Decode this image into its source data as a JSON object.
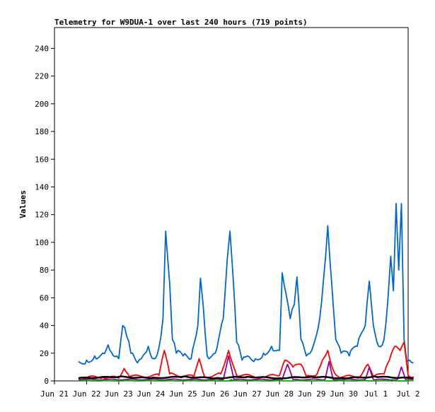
{
  "chart_data": {
    "type": "line",
    "title": "Telemetry for W9DUA-1 over last 240 hours (719 points)",
    "xlabel": "",
    "ylabel": "Values",
    "ylim": [
      0,
      255
    ],
    "yticks": [
      0,
      20,
      40,
      60,
      80,
      100,
      120,
      140,
      160,
      180,
      200,
      220,
      240
    ],
    "xlim": [
      "2023-06-21T00:00",
      "2023-07-02T00:00"
    ],
    "xticks": [
      {
        "t": "2023-06-21T00:00",
        "label": "Jun 21"
      },
      {
        "t": "2023-06-22T00:00",
        "label": "Jun 22"
      },
      {
        "t": "2023-06-23T00:00",
        "label": "Jun 23"
      },
      {
        "t": "2023-06-24T00:00",
        "label": "Jun 24"
      },
      {
        "t": "2023-06-25T00:00",
        "label": "Jun 25"
      },
      {
        "t": "2023-06-26T00:00",
        "label": "Jun 26"
      },
      {
        "t": "2023-06-27T00:00",
        "label": "Jun 27"
      },
      {
        "t": "2023-06-28T00:00",
        "label": "Jun 28"
      },
      {
        "t": "2023-06-29T00:00",
        "label": "Jun 29"
      },
      {
        "t": "2023-06-30T00:00",
        "label": "Jun 30"
      },
      {
        "t": "2023-07-01T00:00",
        "label": "Jul 1"
      },
      {
        "t": "2023-07-02T00:00",
        "label": "Jul 2"
      }
    ],
    "grid": false,
    "legend": "none",
    "series": [
      {
        "color": "#0066cc",
        "points": [
          [
            "2023-06-21T18:00",
            14
          ],
          [
            "2023-06-22T00:00",
            15
          ],
          [
            "2023-06-22T06:00",
            18
          ],
          [
            "2023-06-22T12:00",
            20
          ],
          [
            "2023-06-22T16:00",
            26
          ],
          [
            "2023-06-22T20:00",
            18
          ],
          [
            "2023-06-23T00:00",
            16
          ],
          [
            "2023-06-23T03:00",
            40
          ],
          [
            "2023-06-23T06:00",
            32
          ],
          [
            "2023-06-23T09:00",
            20
          ],
          [
            "2023-06-23T14:00",
            13
          ],
          [
            "2023-06-23T18:00",
            18
          ],
          [
            "2023-06-23T22:00",
            25
          ],
          [
            "2023-06-24T02:00",
            16
          ],
          [
            "2023-06-24T06:00",
            24
          ],
          [
            "2023-06-24T09:00",
            45
          ],
          [
            "2023-06-24T11:00",
            108
          ],
          [
            "2023-06-24T14:00",
            70
          ],
          [
            "2023-06-24T16:00",
            30
          ],
          [
            "2023-06-24T19:00",
            20
          ],
          [
            "2023-06-25T00:00",
            18
          ],
          [
            "2023-06-25T06:00",
            16
          ],
          [
            "2023-06-25T11:00",
            40
          ],
          [
            "2023-06-25T13:00",
            74
          ],
          [
            "2023-06-25T15:00",
            55
          ],
          [
            "2023-06-25T18:00",
            18
          ],
          [
            "2023-06-26T00:00",
            20
          ],
          [
            "2023-06-26T06:00",
            45
          ],
          [
            "2023-06-26T09:00",
            88
          ],
          [
            "2023-06-26T11:00",
            108
          ],
          [
            "2023-06-26T13:00",
            80
          ],
          [
            "2023-06-26T16:00",
            28
          ],
          [
            "2023-06-26T20:00",
            15
          ],
          [
            "2023-06-27T00:00",
            18
          ],
          [
            "2023-06-27T06:00",
            16
          ],
          [
            "2023-06-27T12:00",
            20
          ],
          [
            "2023-06-27T18:00",
            25
          ],
          [
            "2023-06-28T00:00",
            22
          ],
          [
            "2023-06-28T02:00",
            78
          ],
          [
            "2023-06-28T05:00",
            62
          ],
          [
            "2023-06-28T08:00",
            45
          ],
          [
            "2023-06-28T11:00",
            55
          ],
          [
            "2023-06-28T13:00",
            75
          ],
          [
            "2023-06-28T16:00",
            30
          ],
          [
            "2023-06-28T20:00",
            18
          ],
          [
            "2023-06-29T00:00",
            22
          ],
          [
            "2023-06-29T06:00",
            45
          ],
          [
            "2023-06-29T09:00",
            75
          ],
          [
            "2023-06-29T12:00",
            112
          ],
          [
            "2023-06-29T15:00",
            70
          ],
          [
            "2023-06-29T18:00",
            30
          ],
          [
            "2023-06-29T22:00",
            20
          ],
          [
            "2023-06-30T04:00",
            18
          ],
          [
            "2023-06-30T10:00",
            25
          ],
          [
            "2023-06-30T16:00",
            40
          ],
          [
            "2023-06-30T19:00",
            72
          ],
          [
            "2023-06-30T22:00",
            40
          ],
          [
            "2023-07-01T02:00",
            25
          ],
          [
            "2023-07-01T06:00",
            30
          ],
          [
            "2023-07-01T09:00",
            60
          ],
          [
            "2023-07-01T11:00",
            90
          ],
          [
            "2023-07-01T13:00",
            65
          ],
          [
            "2023-07-01T15:00",
            128
          ],
          [
            "2023-07-01T17:00",
            80
          ],
          [
            "2023-07-01T19:00",
            128
          ],
          [
            "2023-07-01T21:00",
            30
          ],
          [
            "2023-07-01T23:00",
            14
          ],
          [
            "2023-07-02T01:00",
            15
          ],
          [
            "2023-07-02T04:00",
            13
          ]
        ]
      },
      {
        "color": "#ff0000",
        "points": [
          [
            "2023-06-21T18:00",
            2
          ],
          [
            "2023-06-22T12:00",
            3
          ],
          [
            "2023-06-23T00:00",
            2
          ],
          [
            "2023-06-23T04:00",
            9
          ],
          [
            "2023-06-23T08:00",
            3
          ],
          [
            "2023-06-24T06:00",
            4
          ],
          [
            "2023-06-24T10:00",
            22
          ],
          [
            "2023-06-24T14:00",
            5
          ],
          [
            "2023-06-25T08:00",
            3
          ],
          [
            "2023-06-25T12:00",
            16
          ],
          [
            "2023-06-25T16:00",
            3
          ],
          [
            "2023-06-26T04:00",
            5
          ],
          [
            "2023-06-26T10:00",
            22
          ],
          [
            "2023-06-26T16:00",
            4
          ],
          [
            "2023-06-27T12:00",
            3
          ],
          [
            "2023-06-28T00:00",
            4
          ],
          [
            "2023-06-28T04:00",
            15
          ],
          [
            "2023-06-28T10:00",
            10
          ],
          [
            "2023-06-28T16:00",
            12
          ],
          [
            "2023-06-28T20:00",
            3
          ],
          [
            "2023-06-29T04:00",
            5
          ],
          [
            "2023-06-29T08:00",
            15
          ],
          [
            "2023-06-29T12:00",
            22
          ],
          [
            "2023-06-29T16:00",
            8
          ],
          [
            "2023-06-29T20:00",
            3
          ],
          [
            "2023-06-30T12:00",
            3
          ],
          [
            "2023-06-30T18:00",
            12
          ],
          [
            "2023-06-30T22:00",
            3
          ],
          [
            "2023-07-01T06:00",
            5
          ],
          [
            "2023-07-01T10:00",
            15
          ],
          [
            "2023-07-01T14:00",
            25
          ],
          [
            "2023-07-01T18:00",
            22
          ],
          [
            "2023-07-01T21:00",
            28
          ],
          [
            "2023-07-02T00:00",
            4
          ],
          [
            "2023-07-02T04:00",
            3
          ]
        ]
      },
      {
        "color": "#990099",
        "points": [
          [
            "2023-06-21T18:00",
            1
          ],
          [
            "2023-06-26T06:00",
            1
          ],
          [
            "2023-06-26T10:00",
            18
          ],
          [
            "2023-06-26T14:00",
            1
          ],
          [
            "2023-06-28T02:00",
            1
          ],
          [
            "2023-06-28T06:00",
            12
          ],
          [
            "2023-06-28T10:00",
            1
          ],
          [
            "2023-06-29T10:00",
            1
          ],
          [
            "2023-06-29T13:00",
            14
          ],
          [
            "2023-06-29T16:00",
            1
          ],
          [
            "2023-06-30T16:00",
            1
          ],
          [
            "2023-06-30T19:00",
            10
          ],
          [
            "2023-06-30T22:00",
            1
          ],
          [
            "2023-07-01T16:00",
            1
          ],
          [
            "2023-07-01T19:00",
            10
          ],
          [
            "2023-07-01T22:00",
            1
          ],
          [
            "2023-07-02T04:00",
            1
          ]
        ]
      },
      {
        "color": "#00aa00",
        "points": [
          [
            "2023-06-21T18:00",
            0
          ],
          [
            "2023-06-26T10:00",
            0
          ],
          [
            "2023-06-26T12:00",
            1
          ],
          [
            "2023-06-26T14:00",
            0
          ],
          [
            "2023-07-01T10:00",
            0
          ],
          [
            "2023-07-01T12:00",
            1
          ],
          [
            "2023-07-01T14:00",
            0
          ],
          [
            "2023-07-02T04:00",
            0
          ]
        ]
      },
      {
        "color": "#000000",
        "points": [
          [
            "2023-06-21T18:00",
            2
          ],
          [
            "2023-06-23T00:00",
            3
          ],
          [
            "2023-06-24T00:00",
            2
          ],
          [
            "2023-06-25T00:00",
            3
          ],
          [
            "2023-06-26T00:00",
            2
          ],
          [
            "2023-06-27T00:00",
            3
          ],
          [
            "2023-06-28T00:00",
            2
          ],
          [
            "2023-06-29T00:00",
            3
          ],
          [
            "2023-06-30T00:00",
            2
          ],
          [
            "2023-07-01T00:00",
            3
          ],
          [
            "2023-07-02T04:00",
            2
          ]
        ]
      }
    ]
  }
}
